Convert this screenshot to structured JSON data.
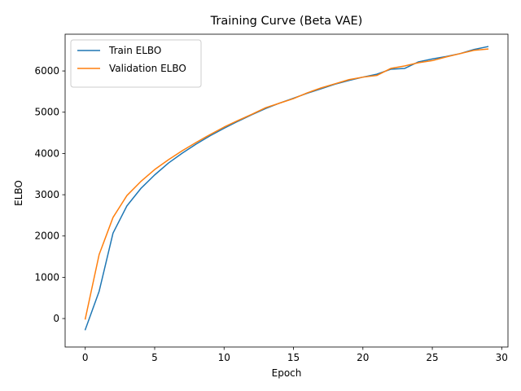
{
  "chart_data": {
    "type": "line",
    "title": "Training Curve (Beta VAE)",
    "xlabel": "Epoch",
    "ylabel": "ELBO",
    "x": [
      0,
      1,
      2,
      3,
      4,
      5,
      6,
      7,
      8,
      9,
      10,
      11,
      12,
      13,
      14,
      15,
      16,
      17,
      18,
      19,
      20,
      21,
      22,
      23,
      24,
      25,
      26,
      27,
      28,
      29
    ],
    "xlim": [
      -1.45,
      30.45
    ],
    "ylim": [
      -690,
      6890
    ],
    "xticks": [
      0,
      5,
      10,
      15,
      20,
      25,
      30
    ],
    "yticks": [
      0,
      1000,
      2000,
      3000,
      4000,
      5000,
      6000
    ],
    "grid": false,
    "legend": "top-left",
    "series": [
      {
        "name": "Train ELBO",
        "color": "#1f77b4",
        "values": [
          -270,
          660,
          2070,
          2730,
          3150,
          3480,
          3770,
          4010,
          4230,
          4430,
          4610,
          4780,
          4940,
          5090,
          5220,
          5340,
          5460,
          5570,
          5680,
          5770,
          5850,
          5920,
          6040,
          6060,
          6220,
          6290,
          6350,
          6420,
          6520,
          6590
        ]
      },
      {
        "name": "Validation ELBO",
        "color": "#ff7f0e",
        "values": [
          -10,
          1550,
          2450,
          2980,
          3320,
          3610,
          3850,
          4070,
          4270,
          4460,
          4640,
          4800,
          4950,
          5110,
          5220,
          5330,
          5470,
          5590,
          5690,
          5790,
          5850,
          5890,
          6060,
          6120,
          6200,
          6250,
          6340,
          6420,
          6500,
          6530
        ]
      }
    ]
  }
}
